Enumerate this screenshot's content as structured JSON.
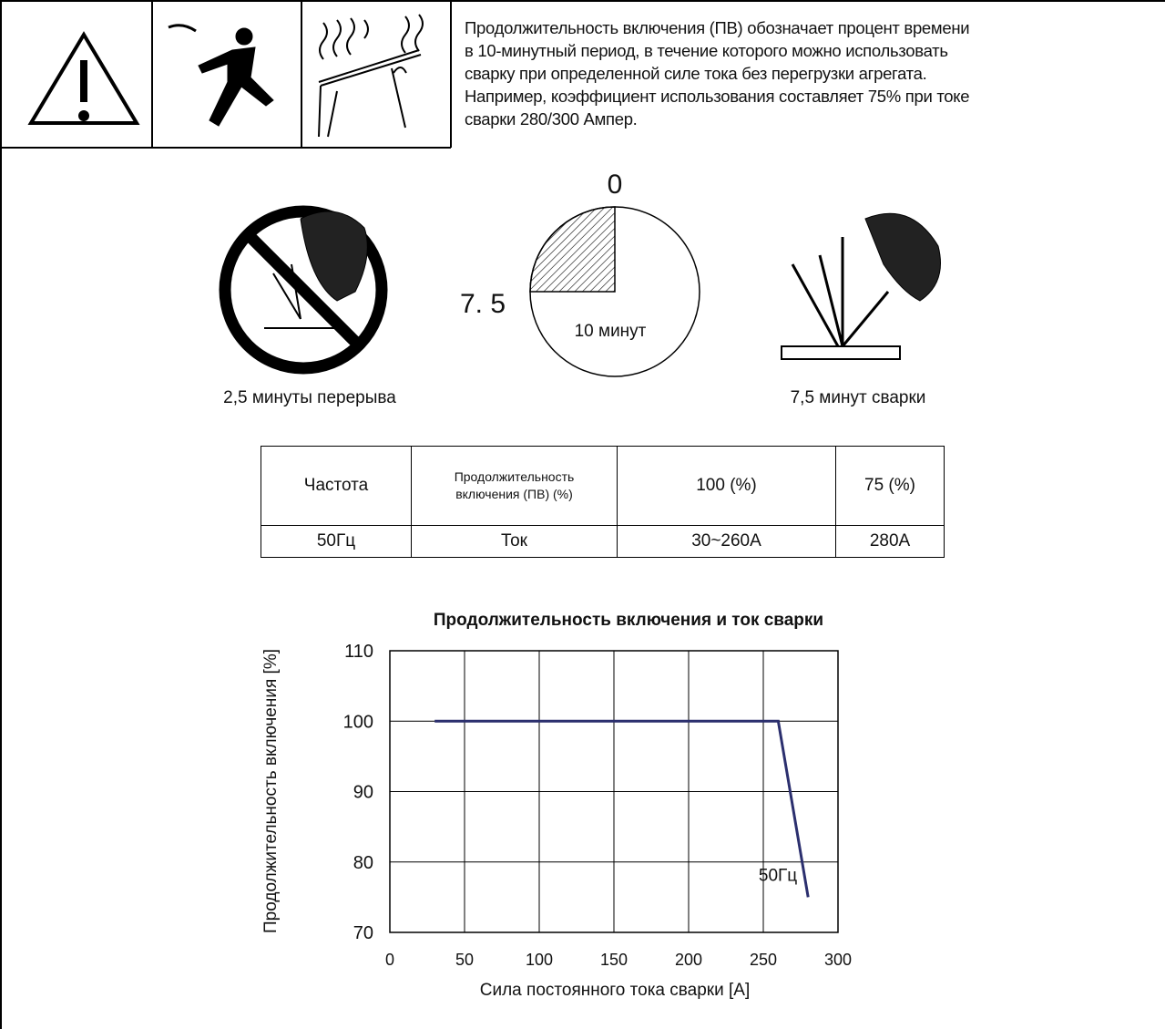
{
  "header": {
    "text_lines": [
      "Продолжительность включения (ПВ) обозначает процент времени",
      "в 10-минутный период, в течение которого можно использовать",
      "сварку при определенной силе тока без перегрузки агрегата.",
      "Например, коэффициент использования составляет 75% при токе",
      "сварки 280/300 Ампер."
    ]
  },
  "duty_cycle_diagram": {
    "pie_top_label": "0",
    "pie_left_label": "7. 5",
    "pie_label": "10 минут",
    "rest_caption": "2,5 минуты перерыва",
    "weld_caption": "7,5 минут сварки"
  },
  "table": {
    "rows": [
      [
        "Частота",
        "Продолжительность включения (ПВ) (%)",
        "100 (%)",
        "75 (%)"
      ],
      [
        "50Гц",
        "Ток",
        "30~260A",
        "280A"
      ]
    ]
  },
  "chart_data": {
    "type": "line",
    "title": "Продолжительность включения и ток сварки",
    "x_label": "Сила постоянного тока сварки [A]",
    "y_label": "Продолжительность включения [%]",
    "x": [
      30,
      260,
      280
    ],
    "series": [
      {
        "name": "50Гц",
        "color": "#2b2f6e",
        "values": [
          100,
          100,
          75
        ]
      }
    ],
    "xlim": [
      0,
      300
    ],
    "ylim": [
      70,
      110
    ],
    "xticks": [
      0,
      50,
      100,
      150,
      200,
      250,
      300
    ],
    "yticks": [
      70,
      80,
      90,
      100,
      110
    ],
    "grid": true
  }
}
